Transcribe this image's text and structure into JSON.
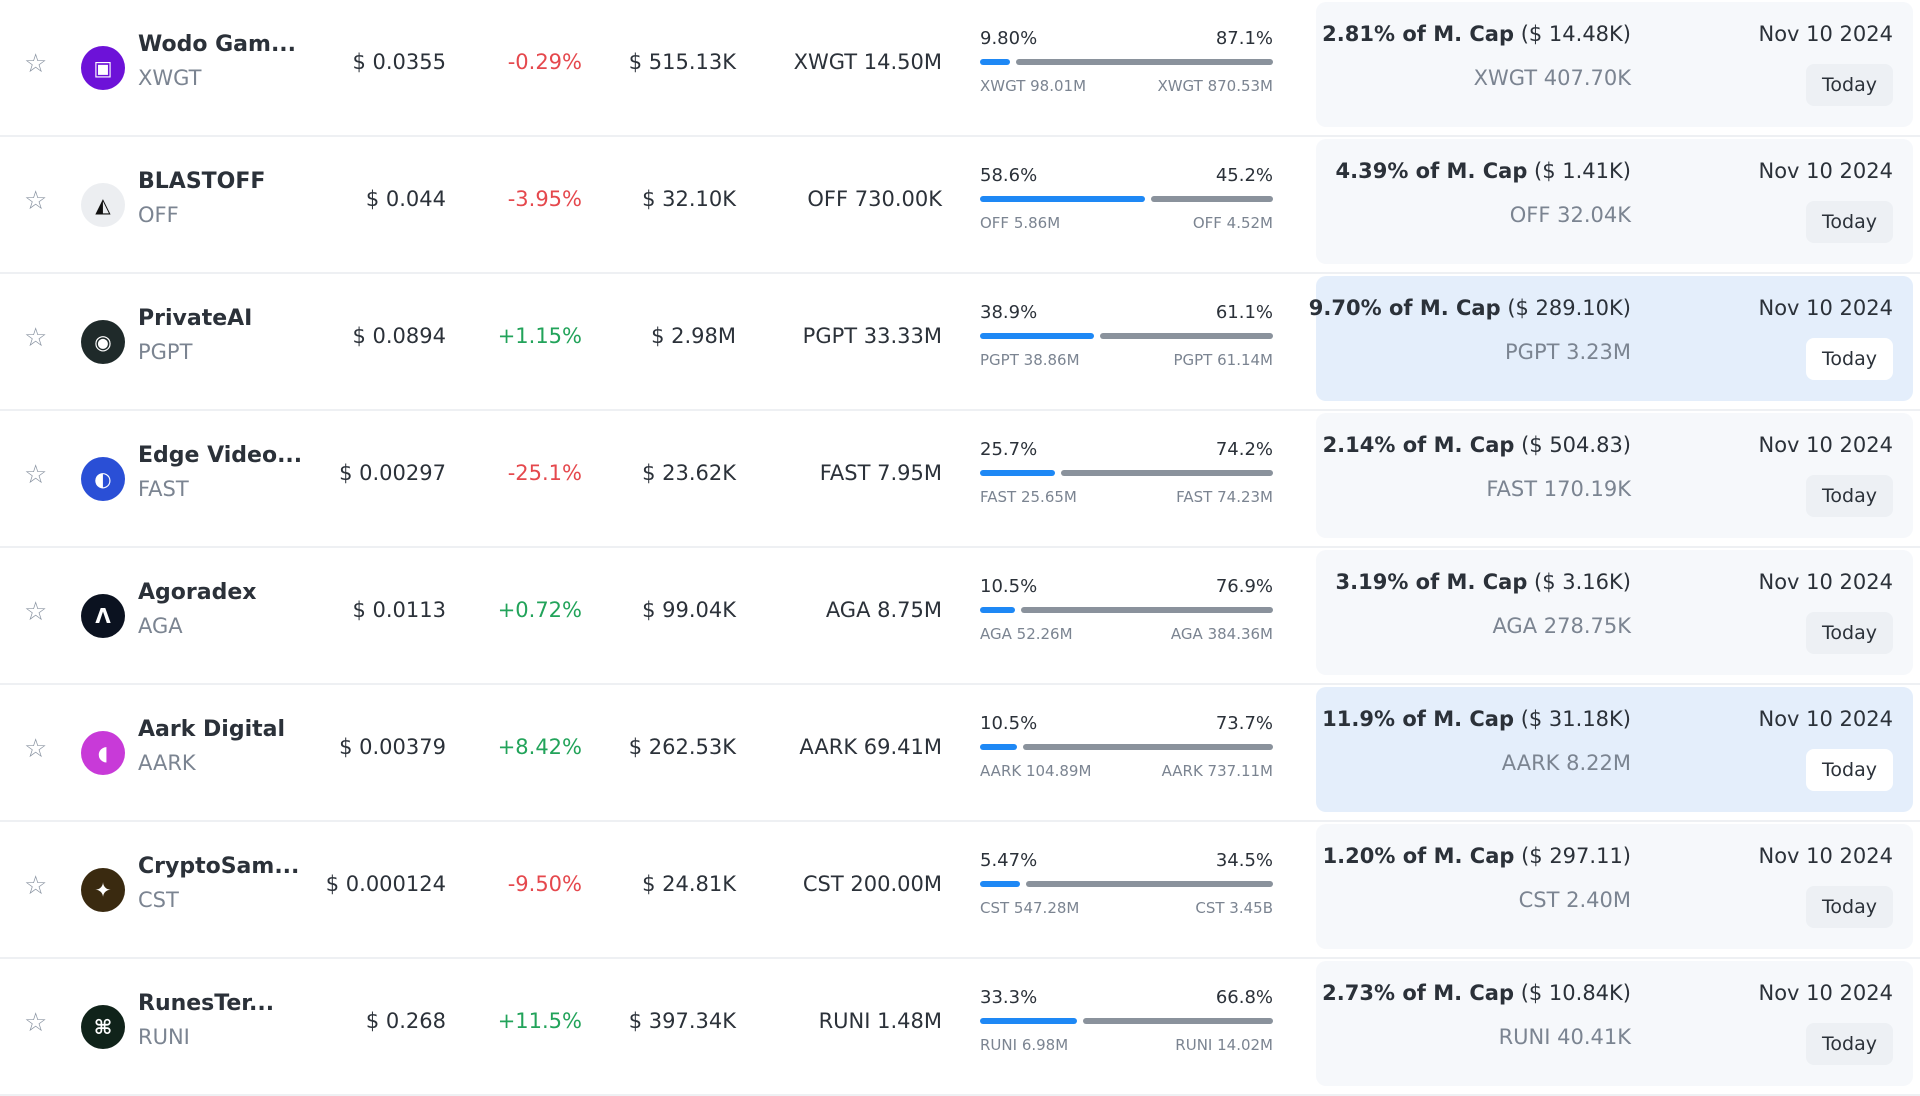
{
  "today_label": "Today",
  "colors": {
    "up": "#22a35a",
    "down": "#e5484d",
    "bar_left": "#1e88f5",
    "bar_right": "#8a929c"
  },
  "rows": [
    {
      "name": "Wodo Gam...",
      "symbol": "XWGT",
      "icon": "wodo-logo",
      "icon_bg": "#6d12d8",
      "glyph": "▣",
      "price": "$ 0.0355",
      "change": "-0.29%",
      "dir": "down",
      "volume": "$ 515.13K",
      "supply": "XWGT 14.50M",
      "left_pct": "9.80%",
      "right_pct": "87.1%",
      "left_val": 9.8,
      "right_val": 87.1,
      "left_amt": "XWGT 98.01M",
      "right_amt": "XWGT 870.53M",
      "cap": "2.81% of M. Cap",
      "cap_usd": "($ 14.48K)",
      "unlock_amt": "XWGT 407.70K",
      "date": "Nov 10 2024",
      "highlight": false
    },
    {
      "name": "BLASTOFF",
      "symbol": "OFF",
      "icon": "blastoff-logo",
      "icon_bg": "#eceef1",
      "glyph": "◭",
      "price": "$ 0.044",
      "change": "-3.95%",
      "dir": "down",
      "volume": "$ 32.10K",
      "supply": "OFF 730.00K",
      "left_pct": "58.6%",
      "right_pct": "45.2%",
      "left_val": 58.6,
      "right_val": 45.2,
      "left_amt": "OFF 5.86M",
      "right_amt": "OFF 4.52M",
      "cap": "4.39% of M. Cap",
      "cap_usd": "($ 1.41K)",
      "unlock_amt": "OFF 32.04K",
      "date": "Nov 10 2024",
      "highlight": false
    },
    {
      "name": "PrivateAI",
      "symbol": "PGPT",
      "icon": "privateai-logo",
      "icon_bg": "#1f2a2a",
      "glyph": "◉",
      "price": "$ 0.0894",
      "change": "+1.15%",
      "dir": "up",
      "volume": "$ 2.98M",
      "supply": "PGPT 33.33M",
      "left_pct": "38.9%",
      "right_pct": "61.1%",
      "left_val": 38.9,
      "right_val": 61.1,
      "left_amt": "PGPT 38.86M",
      "right_amt": "PGPT 61.14M",
      "cap": "9.70% of M. Cap",
      "cap_usd": "($ 289.10K)",
      "unlock_amt": "PGPT 3.23M",
      "date": "Nov 10 2024",
      "highlight": true
    },
    {
      "name": "Edge Video...",
      "symbol": "FAST",
      "icon": "edgevideo-logo",
      "icon_bg": "#2a4fd6",
      "glyph": "◐",
      "price": "$ 0.00297",
      "change": "-25.1%",
      "dir": "down",
      "volume": "$ 23.62K",
      "supply": "FAST 7.95M",
      "left_pct": "25.7%",
      "right_pct": "74.2%",
      "left_val": 25.7,
      "right_val": 74.2,
      "left_amt": "FAST 25.65M",
      "right_amt": "FAST 74.23M",
      "cap": "2.14% of M. Cap",
      "cap_usd": "($ 504.83)",
      "unlock_amt": "FAST 170.19K",
      "date": "Nov 10 2024",
      "highlight": false
    },
    {
      "name": "Agoradex",
      "symbol": "AGA",
      "icon": "agoradex-logo",
      "icon_bg": "#0b1220",
      "glyph": "Λ",
      "price": "$ 0.0113",
      "change": "+0.72%",
      "dir": "up",
      "volume": "$ 99.04K",
      "supply": "AGA 8.75M",
      "left_pct": "10.5%",
      "right_pct": "76.9%",
      "left_val": 10.5,
      "right_val": 76.9,
      "left_amt": "AGA 52.26M",
      "right_amt": "AGA 384.36M",
      "cap": "3.19% of M. Cap",
      "cap_usd": "($ 3.16K)",
      "unlock_amt": "AGA 278.75K",
      "date": "Nov 10 2024",
      "highlight": false
    },
    {
      "name": "Aark Digital",
      "symbol": "AARK",
      "icon": "aark-logo",
      "icon_bg": "#c83ad8",
      "glyph": "◖",
      "price": "$ 0.00379",
      "change": "+8.42%",
      "dir": "up",
      "volume": "$ 262.53K",
      "supply": "AARK 69.41M",
      "left_pct": "10.5%",
      "right_pct": "73.7%",
      "left_val": 10.5,
      "right_val": 73.7,
      "left_amt": "AARK 104.89M",
      "right_amt": "AARK 737.11M",
      "cap": "11.9% of M. Cap",
      "cap_usd": "($ 31.18K)",
      "unlock_amt": "AARK 8.22M",
      "date": "Nov 10 2024",
      "highlight": true
    },
    {
      "name": "CryptoSam...",
      "symbol": "CST",
      "icon": "cryptosamurai-logo",
      "icon_bg": "#3a2a10",
      "glyph": "✦",
      "price": "$ 0.000124",
      "change": "-9.50%",
      "dir": "down",
      "volume": "$ 24.81K",
      "supply": "CST 200.00M",
      "left_pct": "5.47%",
      "right_pct": "34.5%",
      "left_val": 5.47,
      "right_val": 34.5,
      "left_amt": "CST 547.28M",
      "right_amt": "CST 3.45B",
      "cap": "1.20% of M. Cap",
      "cap_usd": "($ 297.11)",
      "unlock_amt": "CST 2.40M",
      "date": "Nov 10 2024",
      "highlight": false
    },
    {
      "name": "RunesTer...",
      "symbol": "RUNI",
      "icon": "runesterminal-logo",
      "icon_bg": "#10231a",
      "glyph": "⌘",
      "price": "$ 0.268",
      "change": "+11.5%",
      "dir": "up",
      "volume": "$ 397.34K",
      "supply": "RUNI 1.48M",
      "left_pct": "33.3%",
      "right_pct": "66.8%",
      "left_val": 33.3,
      "right_val": 66.8,
      "left_amt": "RUNI 6.98M",
      "right_amt": "RUNI 14.02M",
      "cap": "2.73% of M. Cap",
      "cap_usd": "($ 10.84K)",
      "unlock_amt": "RUNI 40.41K",
      "date": "Nov 10 2024",
      "highlight": false
    }
  ]
}
